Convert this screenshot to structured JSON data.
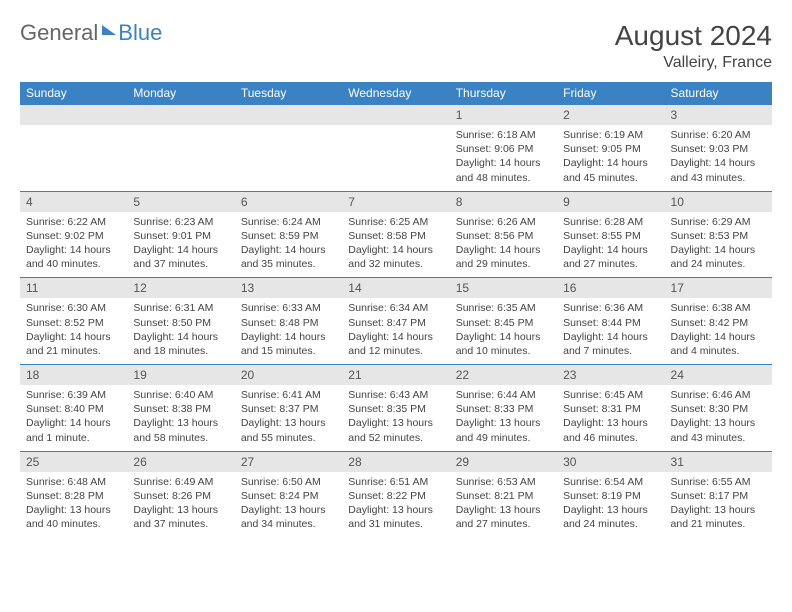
{
  "logo": {
    "part1": "General",
    "part2": "Blue"
  },
  "header": {
    "title": "August 2024",
    "location": "Valleiry, France"
  },
  "colors": {
    "header_bg": "#3b82c4",
    "header_fg": "#ffffff",
    "daynum_bg": "#e6e6e6",
    "border": "#3b82c4"
  },
  "weekdays": [
    "Sunday",
    "Monday",
    "Tuesday",
    "Wednesday",
    "Thursday",
    "Friday",
    "Saturday"
  ],
  "weeks": [
    [
      {
        "n": "",
        "sr": "",
        "ss": "",
        "dl": ""
      },
      {
        "n": "",
        "sr": "",
        "ss": "",
        "dl": ""
      },
      {
        "n": "",
        "sr": "",
        "ss": "",
        "dl": ""
      },
      {
        "n": "",
        "sr": "",
        "ss": "",
        "dl": ""
      },
      {
        "n": "1",
        "sr": "Sunrise: 6:18 AM",
        "ss": "Sunset: 9:06 PM",
        "dl": "Daylight: 14 hours and 48 minutes."
      },
      {
        "n": "2",
        "sr": "Sunrise: 6:19 AM",
        "ss": "Sunset: 9:05 PM",
        "dl": "Daylight: 14 hours and 45 minutes."
      },
      {
        "n": "3",
        "sr": "Sunrise: 6:20 AM",
        "ss": "Sunset: 9:03 PM",
        "dl": "Daylight: 14 hours and 43 minutes."
      }
    ],
    [
      {
        "n": "4",
        "sr": "Sunrise: 6:22 AM",
        "ss": "Sunset: 9:02 PM",
        "dl": "Daylight: 14 hours and 40 minutes."
      },
      {
        "n": "5",
        "sr": "Sunrise: 6:23 AM",
        "ss": "Sunset: 9:01 PM",
        "dl": "Daylight: 14 hours and 37 minutes."
      },
      {
        "n": "6",
        "sr": "Sunrise: 6:24 AM",
        "ss": "Sunset: 8:59 PM",
        "dl": "Daylight: 14 hours and 35 minutes."
      },
      {
        "n": "7",
        "sr": "Sunrise: 6:25 AM",
        "ss": "Sunset: 8:58 PM",
        "dl": "Daylight: 14 hours and 32 minutes."
      },
      {
        "n": "8",
        "sr": "Sunrise: 6:26 AM",
        "ss": "Sunset: 8:56 PM",
        "dl": "Daylight: 14 hours and 29 minutes."
      },
      {
        "n": "9",
        "sr": "Sunrise: 6:28 AM",
        "ss": "Sunset: 8:55 PM",
        "dl": "Daylight: 14 hours and 27 minutes."
      },
      {
        "n": "10",
        "sr": "Sunrise: 6:29 AM",
        "ss": "Sunset: 8:53 PM",
        "dl": "Daylight: 14 hours and 24 minutes."
      }
    ],
    [
      {
        "n": "11",
        "sr": "Sunrise: 6:30 AM",
        "ss": "Sunset: 8:52 PM",
        "dl": "Daylight: 14 hours and 21 minutes."
      },
      {
        "n": "12",
        "sr": "Sunrise: 6:31 AM",
        "ss": "Sunset: 8:50 PM",
        "dl": "Daylight: 14 hours and 18 minutes."
      },
      {
        "n": "13",
        "sr": "Sunrise: 6:33 AM",
        "ss": "Sunset: 8:48 PM",
        "dl": "Daylight: 14 hours and 15 minutes."
      },
      {
        "n": "14",
        "sr": "Sunrise: 6:34 AM",
        "ss": "Sunset: 8:47 PM",
        "dl": "Daylight: 14 hours and 12 minutes."
      },
      {
        "n": "15",
        "sr": "Sunrise: 6:35 AM",
        "ss": "Sunset: 8:45 PM",
        "dl": "Daylight: 14 hours and 10 minutes."
      },
      {
        "n": "16",
        "sr": "Sunrise: 6:36 AM",
        "ss": "Sunset: 8:44 PM",
        "dl": "Daylight: 14 hours and 7 minutes."
      },
      {
        "n": "17",
        "sr": "Sunrise: 6:38 AM",
        "ss": "Sunset: 8:42 PM",
        "dl": "Daylight: 14 hours and 4 minutes."
      }
    ],
    [
      {
        "n": "18",
        "sr": "Sunrise: 6:39 AM",
        "ss": "Sunset: 8:40 PM",
        "dl": "Daylight: 14 hours and 1 minute."
      },
      {
        "n": "19",
        "sr": "Sunrise: 6:40 AM",
        "ss": "Sunset: 8:38 PM",
        "dl": "Daylight: 13 hours and 58 minutes."
      },
      {
        "n": "20",
        "sr": "Sunrise: 6:41 AM",
        "ss": "Sunset: 8:37 PM",
        "dl": "Daylight: 13 hours and 55 minutes."
      },
      {
        "n": "21",
        "sr": "Sunrise: 6:43 AM",
        "ss": "Sunset: 8:35 PM",
        "dl": "Daylight: 13 hours and 52 minutes."
      },
      {
        "n": "22",
        "sr": "Sunrise: 6:44 AM",
        "ss": "Sunset: 8:33 PM",
        "dl": "Daylight: 13 hours and 49 minutes."
      },
      {
        "n": "23",
        "sr": "Sunrise: 6:45 AM",
        "ss": "Sunset: 8:31 PM",
        "dl": "Daylight: 13 hours and 46 minutes."
      },
      {
        "n": "24",
        "sr": "Sunrise: 6:46 AM",
        "ss": "Sunset: 8:30 PM",
        "dl": "Daylight: 13 hours and 43 minutes."
      }
    ],
    [
      {
        "n": "25",
        "sr": "Sunrise: 6:48 AM",
        "ss": "Sunset: 8:28 PM",
        "dl": "Daylight: 13 hours and 40 minutes."
      },
      {
        "n": "26",
        "sr": "Sunrise: 6:49 AM",
        "ss": "Sunset: 8:26 PM",
        "dl": "Daylight: 13 hours and 37 minutes."
      },
      {
        "n": "27",
        "sr": "Sunrise: 6:50 AM",
        "ss": "Sunset: 8:24 PM",
        "dl": "Daylight: 13 hours and 34 minutes."
      },
      {
        "n": "28",
        "sr": "Sunrise: 6:51 AM",
        "ss": "Sunset: 8:22 PM",
        "dl": "Daylight: 13 hours and 31 minutes."
      },
      {
        "n": "29",
        "sr": "Sunrise: 6:53 AM",
        "ss": "Sunset: 8:21 PM",
        "dl": "Daylight: 13 hours and 27 minutes."
      },
      {
        "n": "30",
        "sr": "Sunrise: 6:54 AM",
        "ss": "Sunset: 8:19 PM",
        "dl": "Daylight: 13 hours and 24 minutes."
      },
      {
        "n": "31",
        "sr": "Sunrise: 6:55 AM",
        "ss": "Sunset: 8:17 PM",
        "dl": "Daylight: 13 hours and 21 minutes."
      }
    ]
  ]
}
